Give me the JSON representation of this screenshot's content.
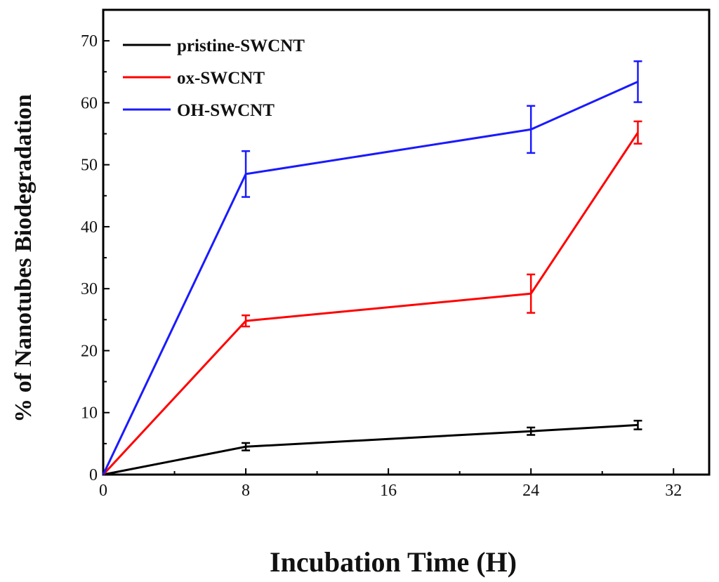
{
  "chart_data": {
    "type": "line",
    "title": "",
    "xlabel": "Incubation Time (H)",
    "ylabel": "% of Nanotubes Biodegradation",
    "xlim": [
      0,
      34
    ],
    "ylim": [
      0,
      75
    ],
    "xticks": [
      0,
      8,
      16,
      24,
      32
    ],
    "yticks": [
      0,
      10,
      20,
      30,
      40,
      50,
      60,
      70
    ],
    "x": [
      0,
      8,
      24,
      30
    ],
    "legend_position": "top-left",
    "series": [
      {
        "name": "pristine-SWCNT",
        "color": "#000000",
        "values": [
          0,
          4.5,
          7.0,
          8.0
        ],
        "errors": [
          0,
          0.6,
          0.6,
          0.7
        ]
      },
      {
        "name": "ox-SWCNT",
        "color": "#ff0000",
        "values": [
          0,
          24.8,
          29.2,
          55.2
        ],
        "errors": [
          0,
          0.9,
          3.1,
          1.8
        ]
      },
      {
        "name": "OH-SWCNT",
        "color": "#1a1aff",
        "values": [
          0,
          48.5,
          55.7,
          63.4
        ],
        "errors": [
          0,
          3.7,
          3.8,
          3.3
        ]
      }
    ]
  }
}
